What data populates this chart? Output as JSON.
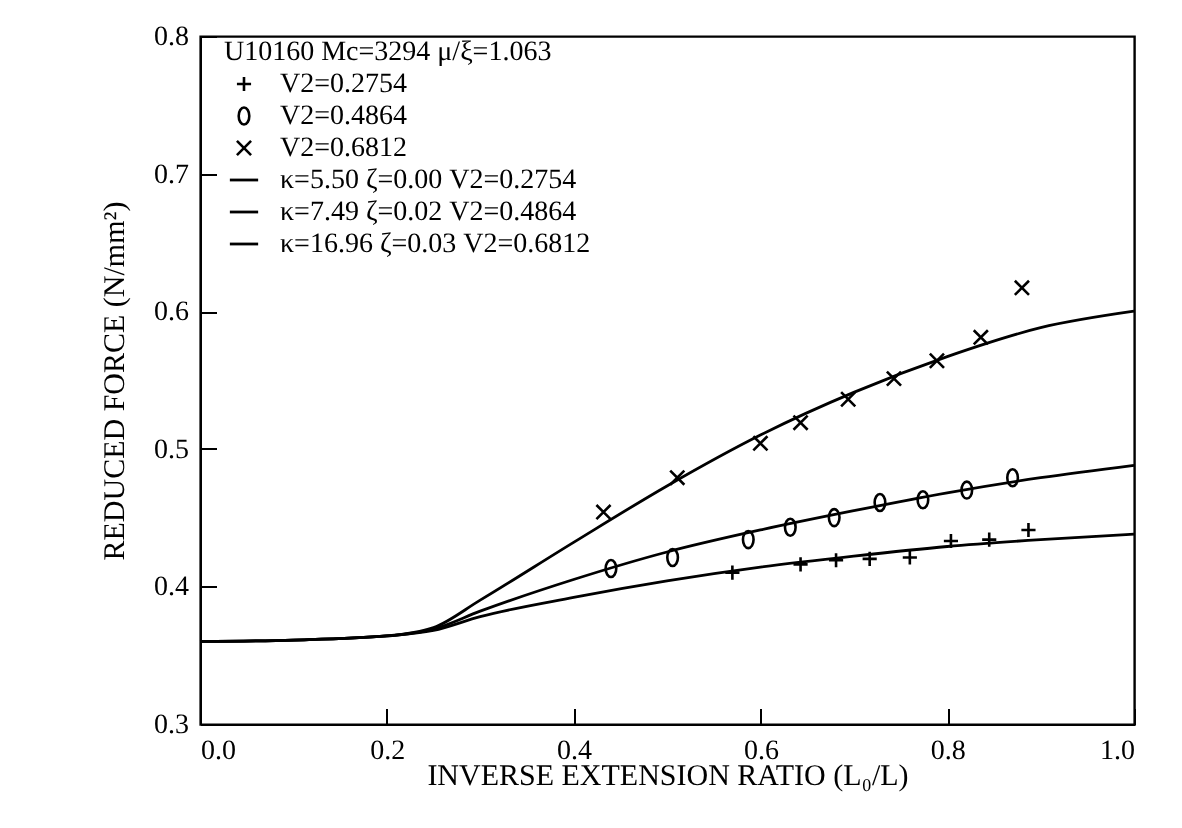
{
  "chart_data": {
    "type": "scatter",
    "xlabel": "INVERSE EXTENSION RATIO (L₀/L)",
    "ylabel": "REDUCED FORCE (N/mm²)",
    "legend_title": "U10160    Mc=3294    μ/ξ=1.063",
    "xlim": [
      0,
      1
    ],
    "ylim": [
      0.3,
      0.8
    ],
    "xticks": [
      {
        "value": 0,
        "label": "0.0"
      },
      0.2,
      0.4,
      0.6,
      0.8,
      {
        "value": 1,
        "label": "1.0"
      }
    ],
    "yticks": [
      0.3,
      0.4,
      0.5,
      0.6,
      0.7,
      0.8
    ],
    "grid": false,
    "legend": "top left",
    "series": [
      {
        "name": "V2=0.2754",
        "marker": "cross",
        "color": "#000000",
        "x": [
          0.57,
          0.643,
          0.681,
          0.717,
          0.76,
          0.804,
          0.845,
          0.887
        ],
        "values": [
          0.41,
          0.416,
          0.419,
          0.42,
          0.421,
          0.433,
          0.434,
          0.441
        ]
      },
      {
        "name": "V2=0.4864",
        "marker": "circle",
        "color": "#000000",
        "x": [
          0.44,
          0.506,
          0.587,
          0.632,
          0.679,
          0.728,
          0.774,
          0.821,
          0.87
        ],
        "values": [
          0.413,
          0.421,
          0.434,
          0.443,
          0.45,
          0.461,
          0.463,
          0.47,
          0.479
        ]
      },
      {
        "name": "V2=0.6812",
        "marker": "x",
        "color": "#000000",
        "x": [
          0.432,
          0.511,
          0.6,
          0.643,
          0.694,
          0.743,
          0.789,
          0.836,
          0.88
        ],
        "values": [
          0.454,
          0.479,
          0.504,
          0.519,
          0.536,
          0.551,
          0.564,
          0.581,
          0.617
        ]
      },
      {
        "name": "κ=5.50    ζ=0.00    V2=0.2754",
        "type": "line",
        "color": "#000000",
        "x": [
          0,
          0.1,
          0.2,
          0.25,
          0.3,
          0.4,
          0.5,
          0.6,
          0.7,
          0.8,
          0.9,
          1.0
        ],
        "values": [
          0.36,
          0.361,
          0.364,
          0.368,
          0.378,
          0.392,
          0.404,
          0.414,
          0.422,
          0.429,
          0.434,
          0.438
        ]
      },
      {
        "name": "κ=7.49    ζ=0.02    V2=0.4864",
        "type": "line",
        "color": "#000000",
        "x": [
          0,
          0.1,
          0.2,
          0.25,
          0.3,
          0.4,
          0.5,
          0.6,
          0.7,
          0.8,
          0.9,
          1.0
        ],
        "values": [
          0.36,
          0.361,
          0.364,
          0.369,
          0.382,
          0.405,
          0.425,
          0.441,
          0.455,
          0.468,
          0.479,
          0.488
        ]
      },
      {
        "name": "κ=16.96   ζ=0.03    V2=0.6812",
        "type": "line",
        "color": "#000000",
        "x": [
          0,
          0.1,
          0.2,
          0.25,
          0.3,
          0.4,
          0.5,
          0.6,
          0.7,
          0.8,
          0.9,
          1.0
        ],
        "values": [
          0.36,
          0.361,
          0.364,
          0.37,
          0.39,
          0.432,
          0.473,
          0.51,
          0.541,
          0.567,
          0.588,
          0.6
        ]
      }
    ]
  }
}
